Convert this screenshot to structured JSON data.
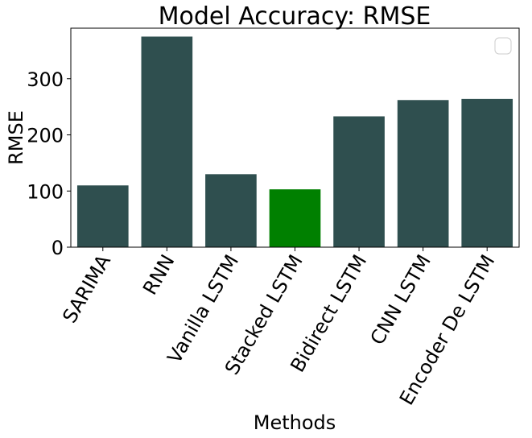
{
  "chart_data": {
    "type": "bar",
    "title": "Model Accuracy: RMSE",
    "xlabel": "Methods",
    "ylabel": "RMSE",
    "categories": [
      "SARIMA",
      "RNN",
      "Vanilla LSTM",
      "Stacked LSTM",
      "Bidirect LSTM",
      "CNN LSTM",
      "Encoder De LSTM"
    ],
    "values": [
      110,
      375,
      130,
      103,
      233,
      262,
      264
    ],
    "highlight_index": 3,
    "ylim": [
      0,
      390
    ],
    "yticks": [
      0,
      100,
      200,
      300
    ],
    "ytick_labels": [
      "0",
      "100",
      "200",
      "300"
    ],
    "legend": {
      "placement": "top-right",
      "entries": []
    },
    "colors": {
      "bar": "#2f4f4f",
      "highlight": "#008000",
      "axis": "#000000",
      "legend_border": "#cccccc"
    }
  }
}
